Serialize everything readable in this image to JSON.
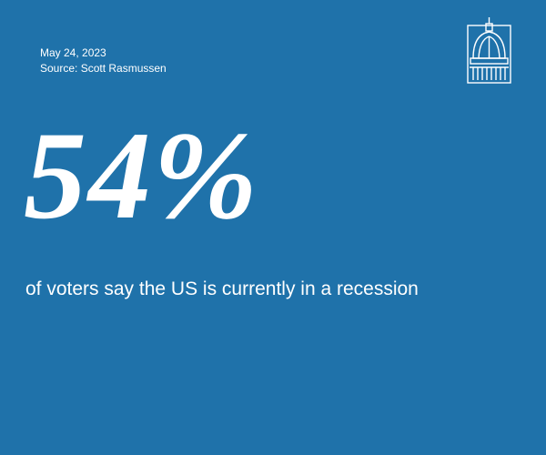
{
  "header": {
    "date": "May 24, 2023",
    "source": "Source: Scott Rasmussen"
  },
  "stat": {
    "value": "54%",
    "description": "of voters say the US is currently in a recession"
  }
}
